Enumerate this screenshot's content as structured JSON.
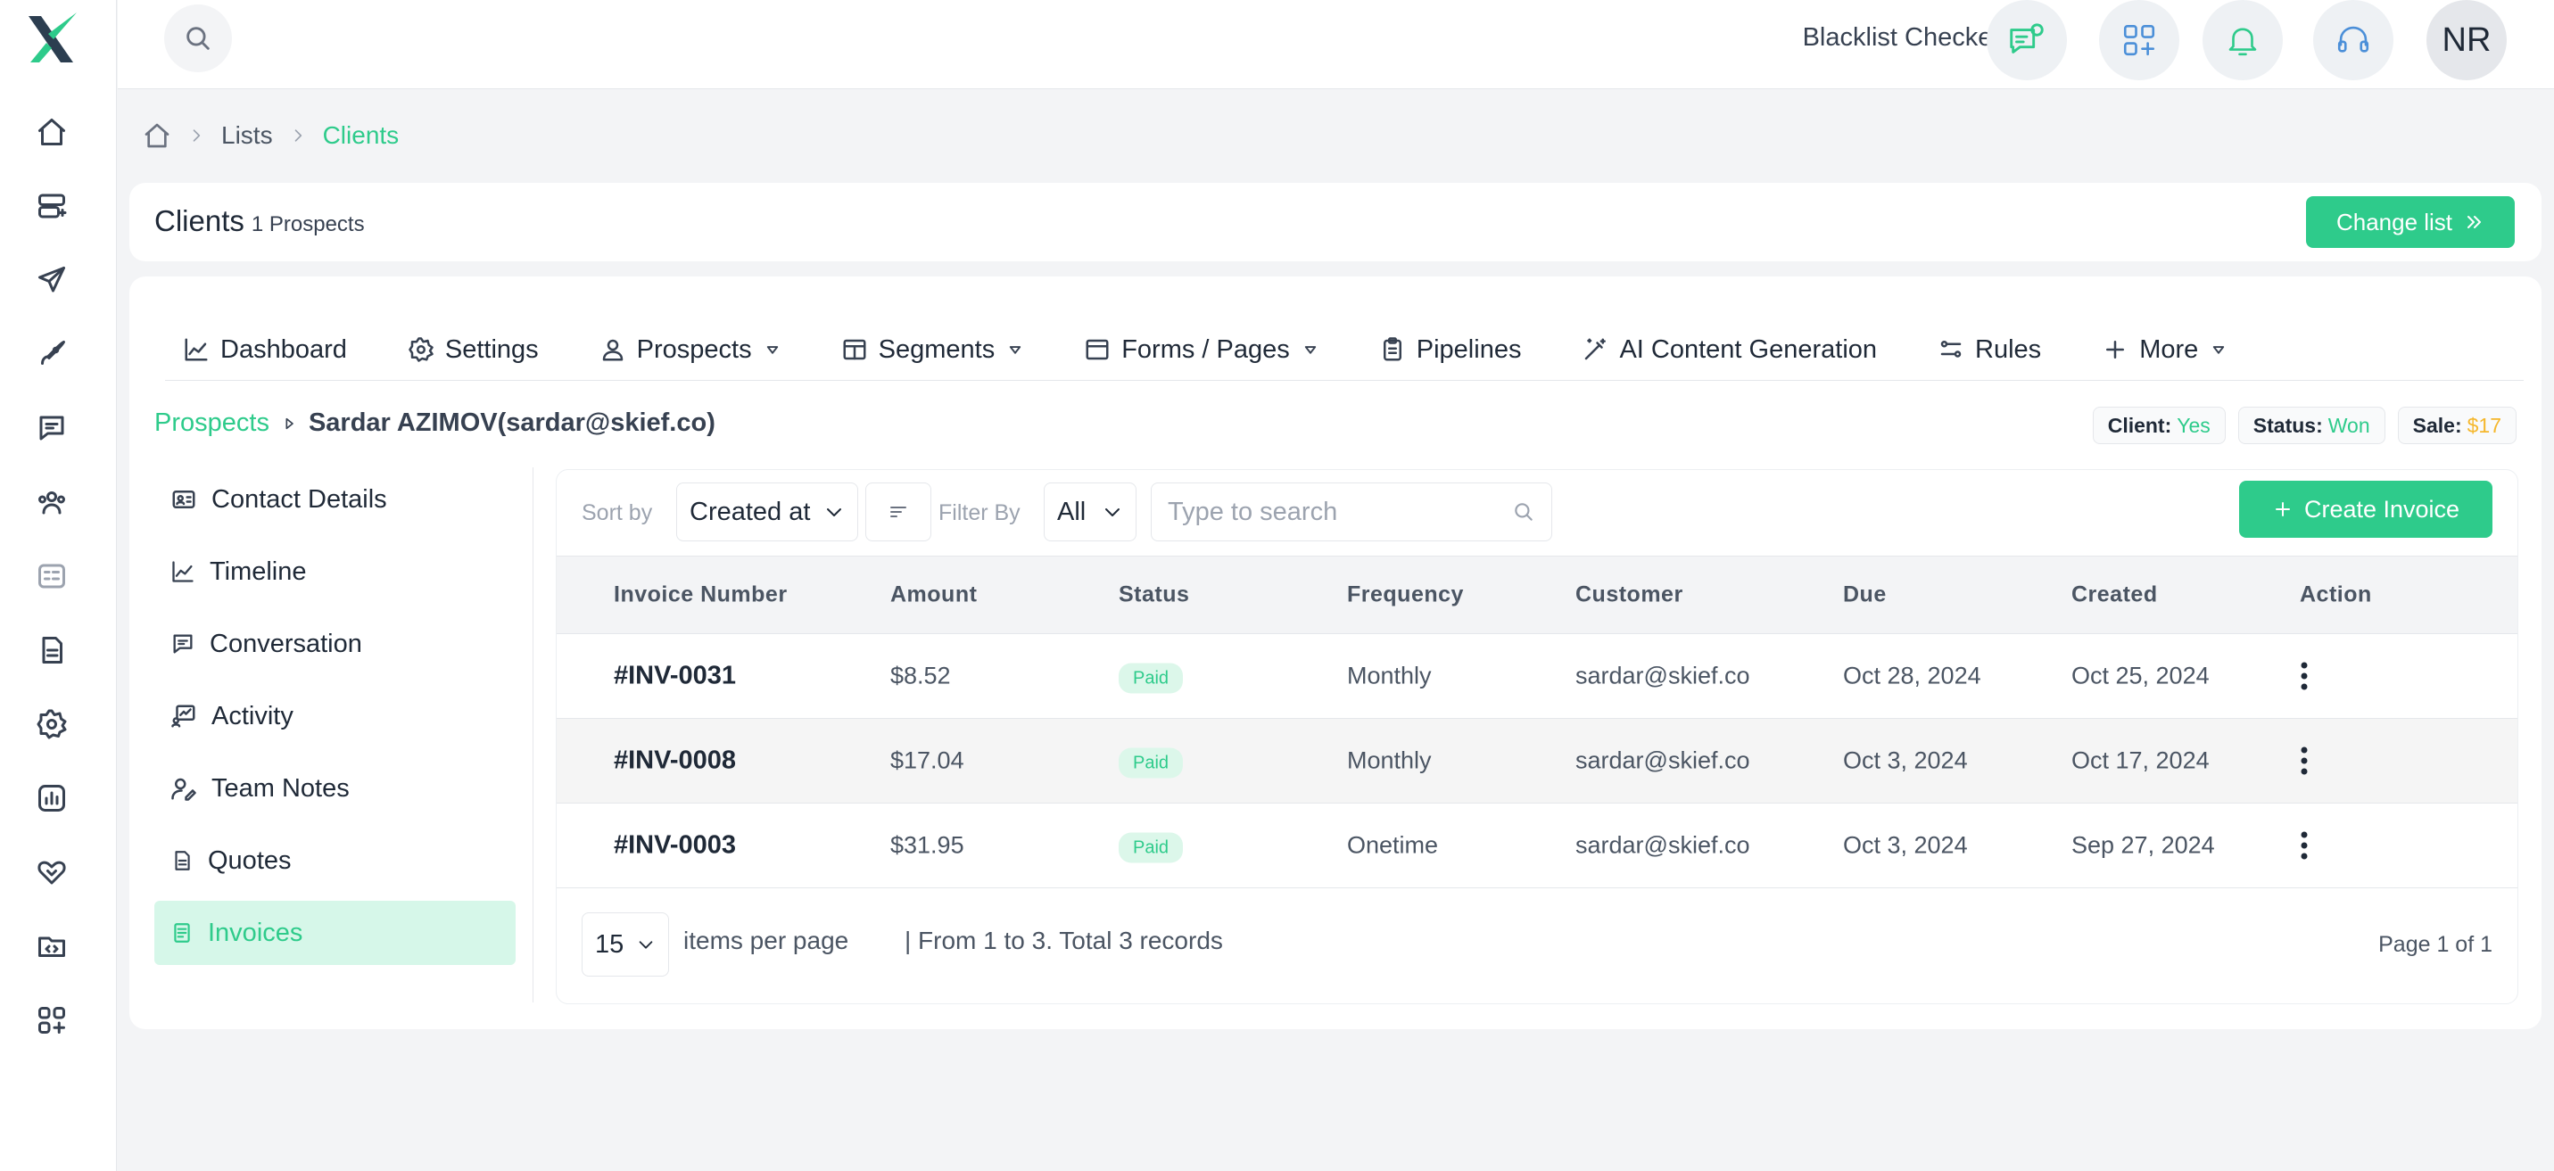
{
  "topbar": {
    "app_name": "Blacklist Checker",
    "avatar_initials": "NR",
    "icons": [
      "search-icon",
      "chat-settings-icon",
      "apps-add-icon",
      "bell-icon",
      "headset-icon"
    ]
  },
  "sidebar": {
    "icons": [
      "home-icon",
      "server-icon",
      "send-icon",
      "rocket-icon",
      "message-icon",
      "users-icon",
      "card-icon",
      "document-icon",
      "gear-icon",
      "chart-icon",
      "heart-handshake-icon",
      "folder-code-icon",
      "apps-add-icon"
    ]
  },
  "breadcrumb": {
    "items": [
      "Lists",
      "Clients"
    ]
  },
  "header": {
    "title": "Clients",
    "subtitle": "1 Prospects",
    "change_list_label": "Change list"
  },
  "tabs": [
    {
      "label": "Dashboard",
      "icon": "chart-line-icon",
      "dropdown": false
    },
    {
      "label": "Settings",
      "icon": "gear-icon",
      "dropdown": false
    },
    {
      "label": "Prospects",
      "icon": "user-icon",
      "dropdown": true
    },
    {
      "label": "Segments",
      "icon": "columns-icon",
      "dropdown": true
    },
    {
      "label": "Forms / Pages",
      "icon": "window-icon",
      "dropdown": true
    },
    {
      "label": "Pipelines",
      "icon": "clipboard-icon",
      "dropdown": false
    },
    {
      "label": "AI Content Generation",
      "icon": "magic-wand-icon",
      "dropdown": false
    },
    {
      "label": "Rules",
      "icon": "rules-icon",
      "dropdown": false
    },
    {
      "label": "More",
      "icon": "plus-icon",
      "dropdown": true
    }
  ],
  "prospect": {
    "link_label": "Prospects",
    "name": "Sardar AZIMOV(sardar@skief.co)"
  },
  "badges": {
    "client_label": "Client:",
    "client_value": "Yes",
    "status_label": "Status:",
    "status_value": "Won",
    "sale_label": "Sale:",
    "sale_value": "$17"
  },
  "subnav": [
    {
      "label": "Contact Details",
      "icon": "id-card-icon",
      "active": false
    },
    {
      "label": "Timeline",
      "icon": "chart-line-icon",
      "active": false
    },
    {
      "label": "Conversation",
      "icon": "message-icon",
      "active": false
    },
    {
      "label": "Activity",
      "icon": "activity-icon",
      "active": false
    },
    {
      "label": "Team Notes",
      "icon": "user-edit-icon",
      "active": false
    },
    {
      "label": "Quotes",
      "icon": "file-icon",
      "active": false
    },
    {
      "label": "Invoices",
      "icon": "invoice-icon",
      "active": true
    }
  ],
  "toolbar": {
    "sort_by_label": "Sort by",
    "sort_by_value": "Created at",
    "filter_by_label": "Filter By",
    "filter_by_value": "All",
    "search_placeholder": "Type to search",
    "create_label": "Create Invoice"
  },
  "table": {
    "columns": [
      "Invoice Number",
      "Amount",
      "Status",
      "Frequency",
      "Customer",
      "Due",
      "Created",
      "Action"
    ],
    "rows": [
      {
        "number": "#INV-0031",
        "amount": "$8.52",
        "status": "Paid",
        "frequency": "Monthly",
        "customer": "sardar@skief.co",
        "due": "Oct 28, 2024",
        "created": "Oct 25, 2024"
      },
      {
        "number": "#INV-0008",
        "amount": "$17.04",
        "status": "Paid",
        "frequency": "Monthly",
        "customer": "sardar@skief.co",
        "due": "Oct 3, 2024",
        "created": "Oct 17, 2024"
      },
      {
        "number": "#INV-0003",
        "amount": "$31.95",
        "status": "Paid",
        "frequency": "Onetime",
        "customer": "sardar@skief.co",
        "due": "Oct 3, 2024",
        "created": "Sep 27, 2024"
      }
    ]
  },
  "pager": {
    "per_page": "15",
    "per_page_text": "items per page",
    "records_text": "| From 1 to 3. Total 3 records",
    "page_info": "Page 1 of 1"
  },
  "colors": {
    "accent": "#2ecb8b",
    "accent_light": "#d6f7e9",
    "sale": "#f5b72c"
  }
}
